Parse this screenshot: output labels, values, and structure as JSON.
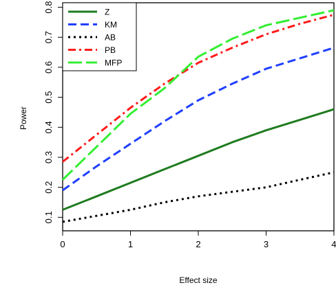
{
  "chart_data": {
    "type": "line",
    "title": "",
    "xlabel": "Effect size",
    "ylabel": "Power",
    "xlim": [
      0,
      4
    ],
    "ylim": [
      0.055,
      0.815
    ],
    "xticks": [
      0,
      1,
      2,
      3,
      4
    ],
    "yticks": [
      0.1,
      0.2,
      0.3,
      0.4,
      0.5,
      0.6,
      0.7,
      0.8
    ],
    "x_tick_labels": [
      "0",
      "1",
      "2",
      "3",
      "4"
    ],
    "y_tick_labels": [
      "0.1",
      "0.2",
      "0.3",
      "0.4",
      "0.5",
      "0.6",
      "0.7",
      "0.8"
    ],
    "grid": false,
    "legend_position": "top-left",
    "series": [
      {
        "name": "Z",
        "color": "#1e7b1e",
        "dash": "solid",
        "x": [
          0,
          0.5,
          1,
          1.5,
          2,
          2.5,
          3,
          3.5,
          4
        ],
        "values": [
          0.125,
          0.17,
          0.215,
          0.26,
          0.305,
          0.35,
          0.39,
          0.425,
          0.46
        ]
      },
      {
        "name": "KM",
        "color": "#1f3fff",
        "dash": "dashed",
        "x": [
          0,
          0.5,
          1,
          1.5,
          2,
          2.5,
          3,
          3.5,
          4
        ],
        "values": [
          0.19,
          0.27,
          0.345,
          0.42,
          0.49,
          0.545,
          0.595,
          0.63,
          0.665
        ]
      },
      {
        "name": "AB",
        "color": "#000000",
        "dash": "dotted",
        "x": [
          0,
          0.5,
          1,
          1.5,
          2,
          2.5,
          3,
          3.5,
          4
        ],
        "values": [
          0.085,
          0.105,
          0.125,
          0.15,
          0.17,
          0.185,
          0.2,
          0.225,
          0.25
        ]
      },
      {
        "name": "PB",
        "color": "#ff1a1a",
        "dash": "dashdot",
        "x": [
          0,
          0.5,
          1,
          1.5,
          2,
          2.5,
          3,
          3.5,
          4
        ],
        "values": [
          0.285,
          0.375,
          0.465,
          0.545,
          0.615,
          0.665,
          0.71,
          0.745,
          0.775
        ]
      },
      {
        "name": "MFP",
        "color": "#33ee33",
        "dash": "longdash",
        "x": [
          0,
          0.5,
          1,
          1.5,
          2,
          2.5,
          3,
          3.5,
          4
        ],
        "values": [
          0.225,
          0.335,
          0.445,
          0.53,
          0.635,
          0.695,
          0.74,
          0.765,
          0.79
        ]
      }
    ]
  }
}
